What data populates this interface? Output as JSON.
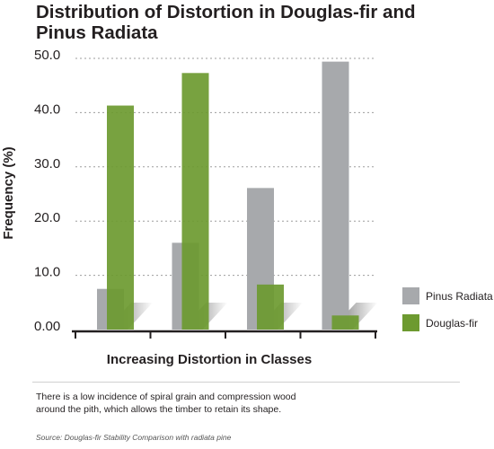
{
  "chart_data": {
    "type": "bar",
    "title": "Distribution of Distortion in Douglas-fir and Pinus Radiata",
    "xlabel": "Increasing Distortion in Classes",
    "ylabel": "Frequency (%)",
    "ylim": [
      0,
      50
    ],
    "yticks": [
      "0.00",
      "10.0",
      "20.0",
      "30.0",
      "40.0",
      "50.0"
    ],
    "num_classes": 4,
    "grid": true,
    "legend_position": "right",
    "series": [
      {
        "name": "Pinus Radiata",
        "color": "#a7a9ac",
        "values": [
          7.5,
          16.0,
          26.1,
          49.4
        ]
      },
      {
        "name": "Douglas-fir",
        "color": "#6d9a30",
        "values": [
          41.3,
          47.3,
          8.3,
          2.6
        ]
      }
    ]
  },
  "caption": "There is a low incidence of spiral grain and compression wood around the pith, which allows the timber to retain its shape.",
  "source": "Source: Douglas-fir Stability Comparison with radiata pine"
}
